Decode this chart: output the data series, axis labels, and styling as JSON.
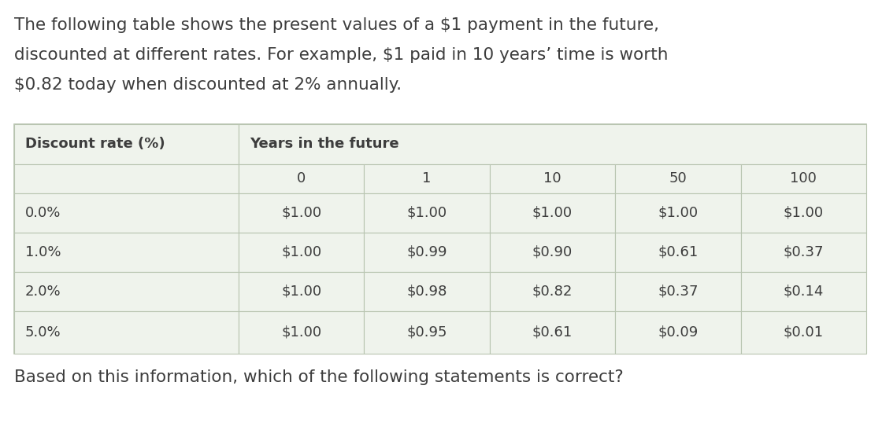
{
  "intro_text_line1": "The following table shows the present values of a $1 payment in the future,",
  "intro_text_line2": "discounted at different rates. For example, $1 paid in 10 years’ time is worth",
  "intro_text_line3": "$0.82 today when discounted at 2% annually.",
  "footer_text": "Based on this information, which of the following statements is correct?",
  "col_header_left": "Discount rate (%)",
  "col_header_right": "Years in the future",
  "year_cols": [
    "0",
    "1",
    "10",
    "50",
    "100"
  ],
  "rows": [
    {
      "rate": "0.0%",
      "values": [
        "$1.00",
        "$1.00",
        "$1.00",
        "$1.00",
        "$1.00"
      ]
    },
    {
      "rate": "1.0%",
      "values": [
        "$1.00",
        "$0.99",
        "$0.90",
        "$0.61",
        "$0.37"
      ]
    },
    {
      "rate": "2.0%",
      "values": [
        "$1.00",
        "$0.98",
        "$0.82",
        "$0.37",
        "$0.14"
      ]
    },
    {
      "rate": "5.0%",
      "values": [
        "$1.00",
        "$0.95",
        "$0.61",
        "$0.09",
        "$0.01"
      ]
    }
  ],
  "bg_color": "#ffffff",
  "table_bg": "#eff3ec",
  "text_color": "#3d3d3d",
  "border_color": "#b8c4b0",
  "intro_fontsize": 15.5,
  "footer_fontsize": 15.5,
  "header_fontsize": 13.0,
  "cell_fontsize": 13.0
}
